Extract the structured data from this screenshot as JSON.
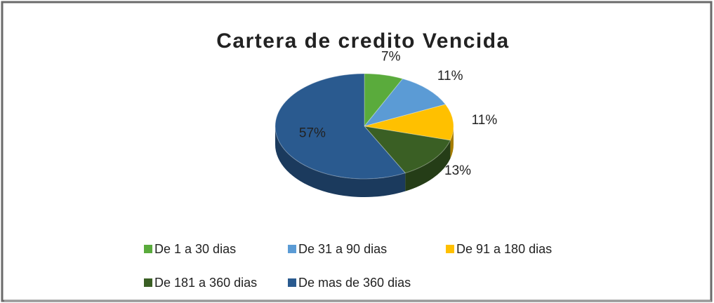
{
  "chart_data": {
    "type": "pie",
    "title": "Cartera de credito Vencida",
    "categories": [
      "De 1 a 30 dias",
      "De 31 a 90 dias",
      "De 91 a 180 dias",
      "De 181 a 360 dias",
      "De mas de 360 dias"
    ],
    "values": [
      7,
      11,
      11,
      13,
      57
    ],
    "value_labels": [
      "7%",
      "11%",
      "11%",
      "13%",
      "57%"
    ],
    "colors": [
      "#5aab3c",
      "#5b9bd5",
      "#ffc000",
      "#3a5f24",
      "#2a5a8f"
    ],
    "legend": "bottom"
  }
}
